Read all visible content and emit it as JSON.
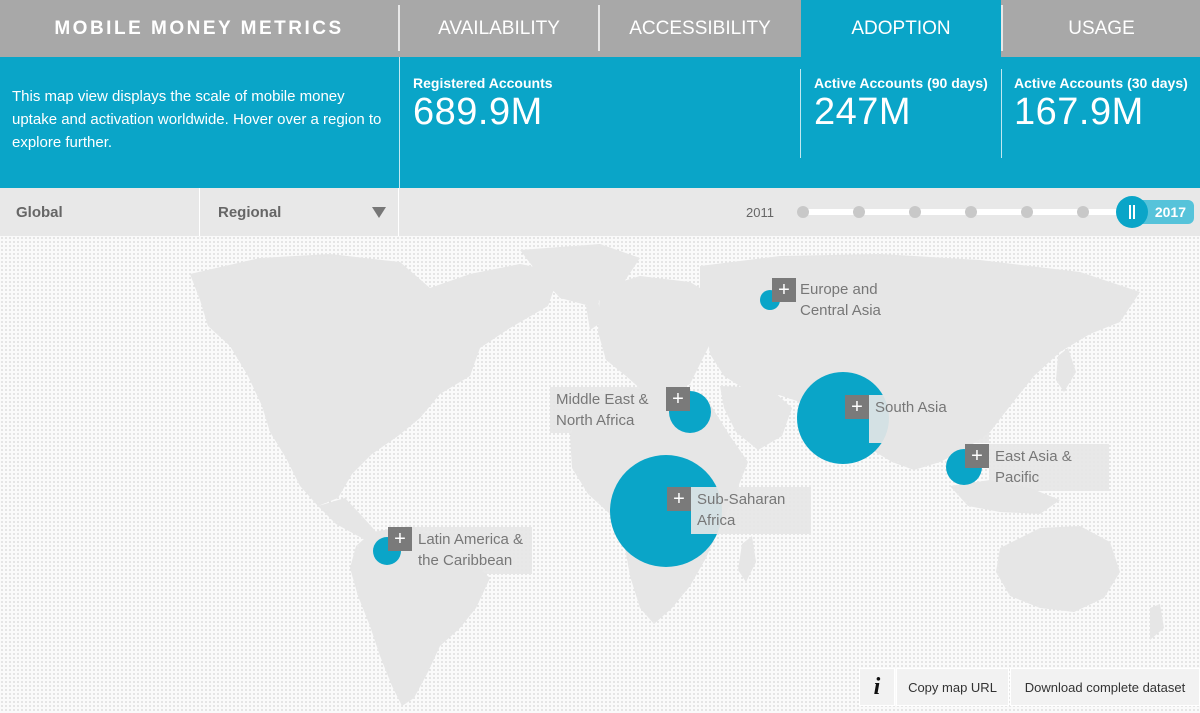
{
  "nav": {
    "brand": "MOBILE MONEY METRICS",
    "tabs": [
      "AVAILABILITY",
      "ACCESSIBILITY",
      "ADOPTION",
      "USAGE"
    ],
    "active_tab": "ADOPTION"
  },
  "summary": {
    "description": "This map view displays the scale of mobile money uptake and activation worldwide. Hover over a region to explore further.",
    "metrics": [
      {
        "label": "Registered Accounts",
        "value": "689.9M"
      },
      {
        "label": "Active Accounts (90 days)",
        "value": "247M"
      },
      {
        "label": "Active Accounts (30 days)",
        "value": "167.9M"
      }
    ]
  },
  "controls": {
    "scope_options": [
      "Global",
      "Regional"
    ],
    "dropdown_icon": "caret-down-icon",
    "year_start": "2011",
    "year_selected": "2017"
  },
  "regions": [
    {
      "name_line1": "Europe and",
      "name_line2": "Central Asia"
    },
    {
      "name_line1": "Middle East &",
      "name_line2": "North Africa"
    },
    {
      "name_line1": "South Asia",
      "name_line2": ""
    },
    {
      "name_line1": "East Asia &",
      "name_line2": "Pacific"
    },
    {
      "name_line1": "Sub-Saharan",
      "name_line2": "Africa"
    },
    {
      "name_line1": "Latin America &",
      "name_line2": "the Caribbean"
    }
  ],
  "footer": {
    "info_icon": "info-icon",
    "copy_url": "Copy map URL",
    "download": "Download complete dataset"
  },
  "colors": {
    "accent": "#0aa5c8",
    "nav_bg": "#a8a8a8",
    "control_bg": "#e8e8e8"
  }
}
